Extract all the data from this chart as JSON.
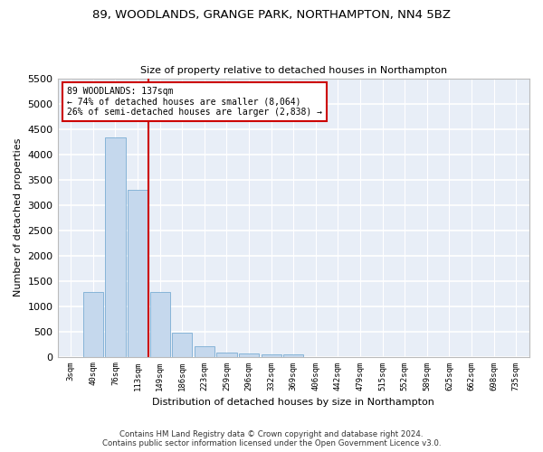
{
  "title_line1": "89, WOODLANDS, GRANGE PARK, NORTHAMPTON, NN4 5BZ",
  "title_line2": "Size of property relative to detached houses in Northampton",
  "xlabel": "Distribution of detached houses by size in Northampton",
  "ylabel": "Number of detached properties",
  "bar_color": "#c5d8ed",
  "bar_edge_color": "#7badd4",
  "background_color": "#e8eef7",
  "grid_color": "#ffffff",
  "categories": [
    "3sqm",
    "40sqm",
    "76sqm",
    "113sqm",
    "149sqm",
    "186sqm",
    "223sqm",
    "259sqm",
    "296sqm",
    "332sqm",
    "369sqm",
    "406sqm",
    "442sqm",
    "479sqm",
    "515sqm",
    "552sqm",
    "589sqm",
    "625sqm",
    "662sqm",
    "698sqm",
    "735sqm"
  ],
  "values": [
    0,
    1270,
    4340,
    3300,
    1280,
    480,
    210,
    90,
    60,
    50,
    50,
    0,
    0,
    0,
    0,
    0,
    0,
    0,
    0,
    0,
    0
  ],
  "ylim": [
    0,
    5500
  ],
  "yticks": [
    0,
    500,
    1000,
    1500,
    2000,
    2500,
    3000,
    3500,
    4000,
    4500,
    5000,
    5500
  ],
  "vline_color": "#cc0000",
  "annotation_text": "89 WOODLANDS: 137sqm\n← 74% of detached houses are smaller (8,064)\n26% of semi-detached houses are larger (2,838) →",
  "annotation_box_color": "#ffffff",
  "annotation_box_edge": "#cc0000",
  "footer_line1": "Contains HM Land Registry data © Crown copyright and database right 2024.",
  "footer_line2": "Contains public sector information licensed under the Open Government Licence v3.0."
}
